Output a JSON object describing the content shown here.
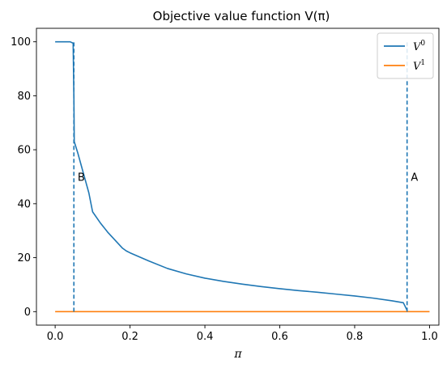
{
  "chart_data": {
    "type": "line",
    "title": "Objective value function V(π)",
    "xlabel": "π",
    "ylabel": "",
    "xlim": [
      -0.05,
      1.025
    ],
    "ylim": [
      -5,
      105
    ],
    "xticks": [
      0.0,
      0.2,
      0.4,
      0.6,
      0.8,
      1.0
    ],
    "xtick_labels": [
      "0.0",
      "0.2",
      "0.4",
      "0.6",
      "0.8",
      "1.0"
    ],
    "yticks": [
      0,
      20,
      40,
      60,
      80,
      100
    ],
    "ytick_labels": [
      "0",
      "20",
      "40",
      "60",
      "80",
      "100"
    ],
    "grid": false,
    "legend_position": "top-right",
    "series": [
      {
        "name": "V^0",
        "label_base": "V",
        "label_sup": "0",
        "color": "#1f77b4",
        "x": [
          0.0,
          0.01,
          0.02,
          0.03,
          0.04,
          0.048,
          0.05,
          0.051,
          0.06,
          0.07,
          0.08,
          0.09,
          0.1,
          0.12,
          0.14,
          0.16,
          0.18,
          0.19,
          0.2,
          0.25,
          0.3,
          0.35,
          0.4,
          0.45,
          0.5,
          0.55,
          0.6,
          0.65,
          0.7,
          0.75,
          0.8,
          0.85,
          0.9,
          0.93,
          0.94
        ],
        "y": [
          100,
          100,
          100,
          100,
          100,
          99.5,
          80,
          63,
          59,
          54,
          49,
          44,
          37,
          33,
          29.5,
          26.5,
          23.5,
          22.5,
          21.8,
          18.8,
          16.0,
          14.0,
          12.4,
          11.2,
          10.2,
          9.3,
          8.5,
          7.8,
          7.2,
          6.5,
          5.8,
          5.0,
          4.0,
          3.3,
          0.5
        ]
      },
      {
        "name": "V^1",
        "label_base": "V",
        "label_sup": "1",
        "color": "#ff7f0e",
        "x": [
          0.0,
          1.0
        ],
        "y": [
          0,
          0
        ]
      }
    ],
    "vlines": [
      {
        "x": 0.05,
        "y0": 0,
        "y1": 100,
        "color": "#1f77b4",
        "style": "dashed"
      },
      {
        "x": 0.94,
        "y0": 0,
        "y1": 100,
        "color": "#1f77b4",
        "style": "dashed"
      }
    ],
    "annotations": [
      {
        "text": "B",
        "x": 0.06,
        "y": 50
      },
      {
        "text": "A",
        "x": 0.95,
        "y": 50
      }
    ]
  }
}
